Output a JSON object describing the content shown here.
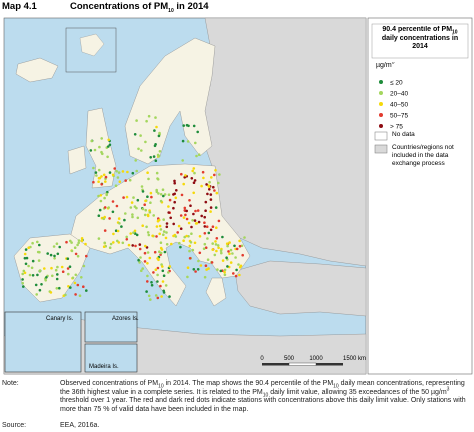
{
  "header": {
    "map_label": "Map 4.1",
    "title": {
      "parts": [
        "Concentrations of PM",
        {
          "sub": "10"
        },
        " in 2014"
      ]
    }
  },
  "legend": {
    "title": {
      "parts": [
        "90.4 percentile of PM",
        {
          "sub": "10"
        },
        " daily concentrations in 2014"
      ]
    },
    "unit": {
      "parts": [
        "µg/m",
        {
          "sup": "3"
        }
      ]
    },
    "classes": [
      {
        "label": "≤ 20",
        "color": "#1e8c3a"
      },
      {
        "label": "20–40",
        "color": "#a4d65e"
      },
      {
        "label": "40–50",
        "color": "#f5d90a"
      },
      {
        "label": "50–75",
        "color": "#e23b2e"
      },
      {
        "label": "> 75",
        "color": "#8e0b12"
      }
    ],
    "areas": [
      {
        "label": "No data",
        "color": "#ffffff"
      },
      {
        "label": "Countries/regions not included in the data exchange process",
        "color": "#d9d9d9"
      }
    ]
  },
  "insets": [
    "Canary Is.",
    "Azores Is.",
    "Madeira Is."
  ],
  "scale": [
    "0",
    "500",
    "1000",
    "1500 km"
  ],
  "note": {
    "label": "Note:",
    "parts": [
      "Observed concentrations of PM",
      {
        "sub": "10"
      },
      " in 2014. The map shows the 90.4 percentile of the PM",
      {
        "sub": "10"
      },
      " daily mean concentrations, representing the 36th highest value in a complete series. It is related to the PM",
      {
        "sub": "10"
      },
      " daily limit value, allowing 35 exceedances of the 50 µg/m",
      {
        "sup": "3"
      },
      " threshold over 1 year. The red and dark red dots indicate stations with concentrations above this daily limit value. Only stations with more than 75 % of valid data have been included in the map."
    ]
  },
  "source": {
    "label": "Source:",
    "text": "EEA, 2016a."
  }
}
